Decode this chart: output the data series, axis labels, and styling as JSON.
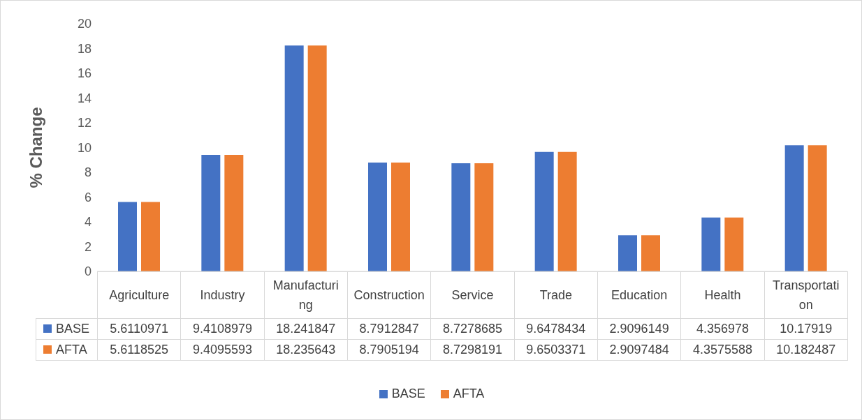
{
  "chart_data": {
    "type": "bar",
    "ylabel": "% Change",
    "categories": [
      "Agriculture",
      "Industry",
      "Manufacturing",
      "Construction",
      "Service",
      "Trade",
      "Education",
      "Health",
      "Transportation"
    ],
    "series": [
      {
        "name": "BASE",
        "color": "#4472c4",
        "values": [
          5.6110971,
          9.4108979,
          18.241847,
          8.7912847,
          8.7278685,
          9.6478434,
          2.9096149,
          4.356978,
          10.17919
        ]
      },
      {
        "name": "AFTA",
        "color": "#ed7d31",
        "values": [
          5.6118525,
          9.4095593,
          18.235643,
          8.7905194,
          8.7298191,
          9.6503371,
          2.9097484,
          4.3575588,
          10.182487
        ]
      }
    ],
    "ylim": [
      0,
      20
    ],
    "yticks": [
      0,
      2,
      4,
      6,
      8,
      10,
      12,
      14,
      16,
      18,
      20
    ],
    "data_labels": true,
    "legend": "bottom"
  }
}
